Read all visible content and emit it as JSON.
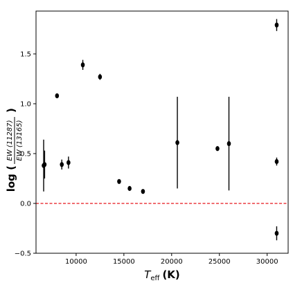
{
  "chart_data": {
    "type": "scatter",
    "title": "",
    "xlabel": {
      "symbol": "T",
      "sub": "eff",
      "unit": "(K)"
    },
    "ylabel": {
      "prefix": "log (",
      "numerator": "EW (11287)",
      "denominator": "EW (13165)",
      "suffix": ")"
    },
    "xlim": [
      5800,
      32200
    ],
    "ylim": [
      -0.5,
      1.93
    ],
    "xticks": [
      10000,
      15000,
      20000,
      25000,
      30000
    ],
    "yticks": [
      -0.5,
      0.0,
      0.5,
      1.0,
      1.5
    ],
    "xtick_labels": [
      "10000",
      "15000",
      "20000",
      "25000",
      "30000"
    ],
    "ytick_labels": [
      "−0.5",
      "0.0",
      "0.5",
      "1.0",
      "1.5"
    ],
    "reference_line": {
      "y": 0.0,
      "color": "#e8141b",
      "style": "dashed"
    },
    "marker_color": "#000000",
    "points": [
      {
        "x": 6600,
        "y": 0.38,
        "yerr_low": 0.26,
        "yerr_high": 0.26
      },
      {
        "x": 6700,
        "y": 0.39,
        "yerr_low": 0.14,
        "yerr_high": 0.14
      },
      {
        "x": 8000,
        "y": 1.08,
        "yerr_low": 0.02,
        "yerr_high": 0.02
      },
      {
        "x": 8500,
        "y": 0.39,
        "yerr_low": 0.05,
        "yerr_high": 0.05
      },
      {
        "x": 9200,
        "y": 0.41,
        "yerr_low": 0.06,
        "yerr_high": 0.06
      },
      {
        "x": 10700,
        "y": 1.39,
        "yerr_low": 0.05,
        "yerr_high": 0.05
      },
      {
        "x": 12500,
        "y": 1.27,
        "yerr_low": 0.03,
        "yerr_high": 0.03
      },
      {
        "x": 14500,
        "y": 0.22,
        "yerr_low": 0.02,
        "yerr_high": 0.02
      },
      {
        "x": 15600,
        "y": 0.15,
        "yerr_low": 0.02,
        "yerr_high": 0.02
      },
      {
        "x": 17000,
        "y": 0.12,
        "yerr_low": 0.02,
        "yerr_high": 0.02
      },
      {
        "x": 20600,
        "y": 0.61,
        "yerr_low": 0.46,
        "yerr_high": 0.46
      },
      {
        "x": 24800,
        "y": 0.55,
        "yerr_low": 0.02,
        "yerr_high": 0.02
      },
      {
        "x": 26000,
        "y": 0.6,
        "yerr_low": 0.47,
        "yerr_high": 0.47
      },
      {
        "x": 31000,
        "y": 1.79,
        "yerr_low": 0.06,
        "yerr_high": 0.06
      },
      {
        "x": 31000,
        "y": 0.42,
        "yerr_low": 0.04,
        "yerr_high": 0.04
      },
      {
        "x": 31000,
        "y": -0.3,
        "yerr_low": 0.07,
        "yerr_high": 0.07
      }
    ]
  }
}
